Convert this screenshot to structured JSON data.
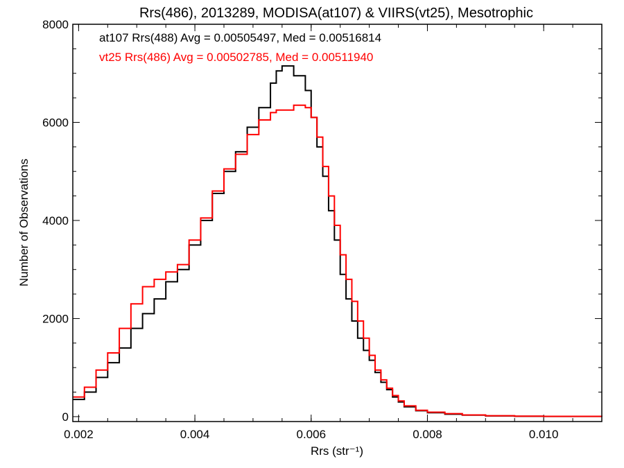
{
  "chart_data": {
    "type": "line",
    "title": "Rrs(486), 2013289, MODISA(at107) & VIIRS(vt25), Mesotrophic",
    "xlabel": "Rrs (str⁻¹)",
    "ylabel": "Number of Observations",
    "xlim": [
      0.0019,
      0.011
    ],
    "ylim": [
      -100,
      8000
    ],
    "xticks": [
      0.002,
      0.004,
      0.006,
      0.008,
      0.01
    ],
    "xtick_labels": [
      "0.002",
      "0.004",
      "0.006",
      "0.008",
      "0.010"
    ],
    "yticks": [
      0,
      2000,
      4000,
      6000,
      8000
    ],
    "ytick_labels": [
      "0",
      "2000",
      "4000",
      "6000",
      "8000"
    ],
    "grid": false,
    "legend_position": "top-left",
    "series": [
      {
        "name": "at107 Rrs(488) Avg = 0.00505497, Med = 0.00516814",
        "color": "#000000",
        "x": [
          0.0019,
          0.0021,
          0.0023,
          0.0025,
          0.0027,
          0.0029,
          0.0031,
          0.0033,
          0.0035,
          0.0037,
          0.0039,
          0.0041,
          0.0043,
          0.0045,
          0.0047,
          0.0049,
          0.0051,
          0.0053,
          0.0054,
          0.0055,
          0.0057,
          0.0059,
          0.006,
          0.0061,
          0.0062,
          0.0063,
          0.0064,
          0.0065,
          0.0066,
          0.0067,
          0.0068,
          0.0069,
          0.007,
          0.0071,
          0.0072,
          0.0073,
          0.0074,
          0.0075,
          0.0076,
          0.0078,
          0.008,
          0.0083,
          0.0086,
          0.009,
          0.0095,
          0.01,
          0.011
        ],
        "y": [
          350,
          500,
          800,
          1100,
          1400,
          1800,
          2100,
          2400,
          2750,
          3000,
          3500,
          4000,
          4550,
          5000,
          5400,
          5900,
          6300,
          6800,
          7050,
          7150,
          6950,
          6650,
          6100,
          5500,
          4900,
          4200,
          3600,
          2900,
          2400,
          1950,
          1600,
          1350,
          1150,
          900,
          700,
          550,
          400,
          300,
          200,
          120,
          80,
          50,
          30,
          15,
          8,
          5,
          2
        ]
      },
      {
        "name": "vt25 Rrs(486) Avg = 0.00502785, Med = 0.00511940",
        "color": "#ff0000",
        "x": [
          0.0019,
          0.0021,
          0.0023,
          0.0025,
          0.0027,
          0.0029,
          0.0031,
          0.0033,
          0.0035,
          0.0037,
          0.0039,
          0.0041,
          0.0043,
          0.0045,
          0.0047,
          0.0049,
          0.0051,
          0.0053,
          0.0054,
          0.0055,
          0.0057,
          0.0059,
          0.006,
          0.0061,
          0.0062,
          0.0063,
          0.0064,
          0.0065,
          0.0066,
          0.0067,
          0.0068,
          0.0069,
          0.007,
          0.0071,
          0.0072,
          0.0073,
          0.0074,
          0.0075,
          0.0076,
          0.0078,
          0.008,
          0.0083,
          0.0086,
          0.009,
          0.0095,
          0.01,
          0.011
        ],
        "y": [
          400,
          600,
          950,
          1300,
          1800,
          2300,
          2650,
          2800,
          2950,
          3100,
          3600,
          4050,
          4600,
          5050,
          5350,
          5750,
          6050,
          6200,
          6250,
          6250,
          6350,
          6300,
          6100,
          5700,
          5100,
          4500,
          3900,
          3300,
          2800,
          2350,
          1950,
          1600,
          1250,
          950,
          750,
          580,
          430,
          320,
          220,
          130,
          90,
          60,
          35,
          18,
          10,
          6,
          3
        ]
      }
    ]
  }
}
